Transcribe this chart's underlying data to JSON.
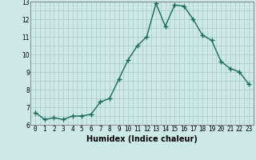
{
  "x": [
    0,
    1,
    2,
    3,
    4,
    5,
    6,
    7,
    8,
    9,
    10,
    11,
    12,
    13,
    14,
    15,
    16,
    17,
    18,
    19,
    20,
    21,
    22,
    23
  ],
  "y": [
    6.7,
    6.3,
    6.4,
    6.3,
    6.5,
    6.5,
    6.6,
    7.3,
    7.5,
    8.6,
    9.7,
    10.5,
    11.0,
    12.9,
    11.6,
    12.8,
    12.75,
    12.0,
    11.1,
    10.8,
    9.6,
    9.2,
    9.0,
    8.3
  ],
  "line_color": "#1a6b5a",
  "marker": "+",
  "marker_size": 4,
  "marker_linewidth": 1.0,
  "bg_color": "#cce9e5",
  "grid_color": "#b0cfcc",
  "xlabel": "Humidex (Indice chaleur)",
  "ylim": [
    6,
    13
  ],
  "xlim": [
    -0.5,
    23.5
  ],
  "yticks": [
    6,
    7,
    8,
    9,
    10,
    11,
    12,
    13
  ],
  "xticks": [
    0,
    1,
    2,
    3,
    4,
    5,
    6,
    7,
    8,
    9,
    10,
    11,
    12,
    13,
    14,
    15,
    16,
    17,
    18,
    19,
    20,
    21,
    22,
    23
  ],
  "tick_fontsize": 5.5,
  "xlabel_fontsize": 7,
  "linewidth": 1.0
}
